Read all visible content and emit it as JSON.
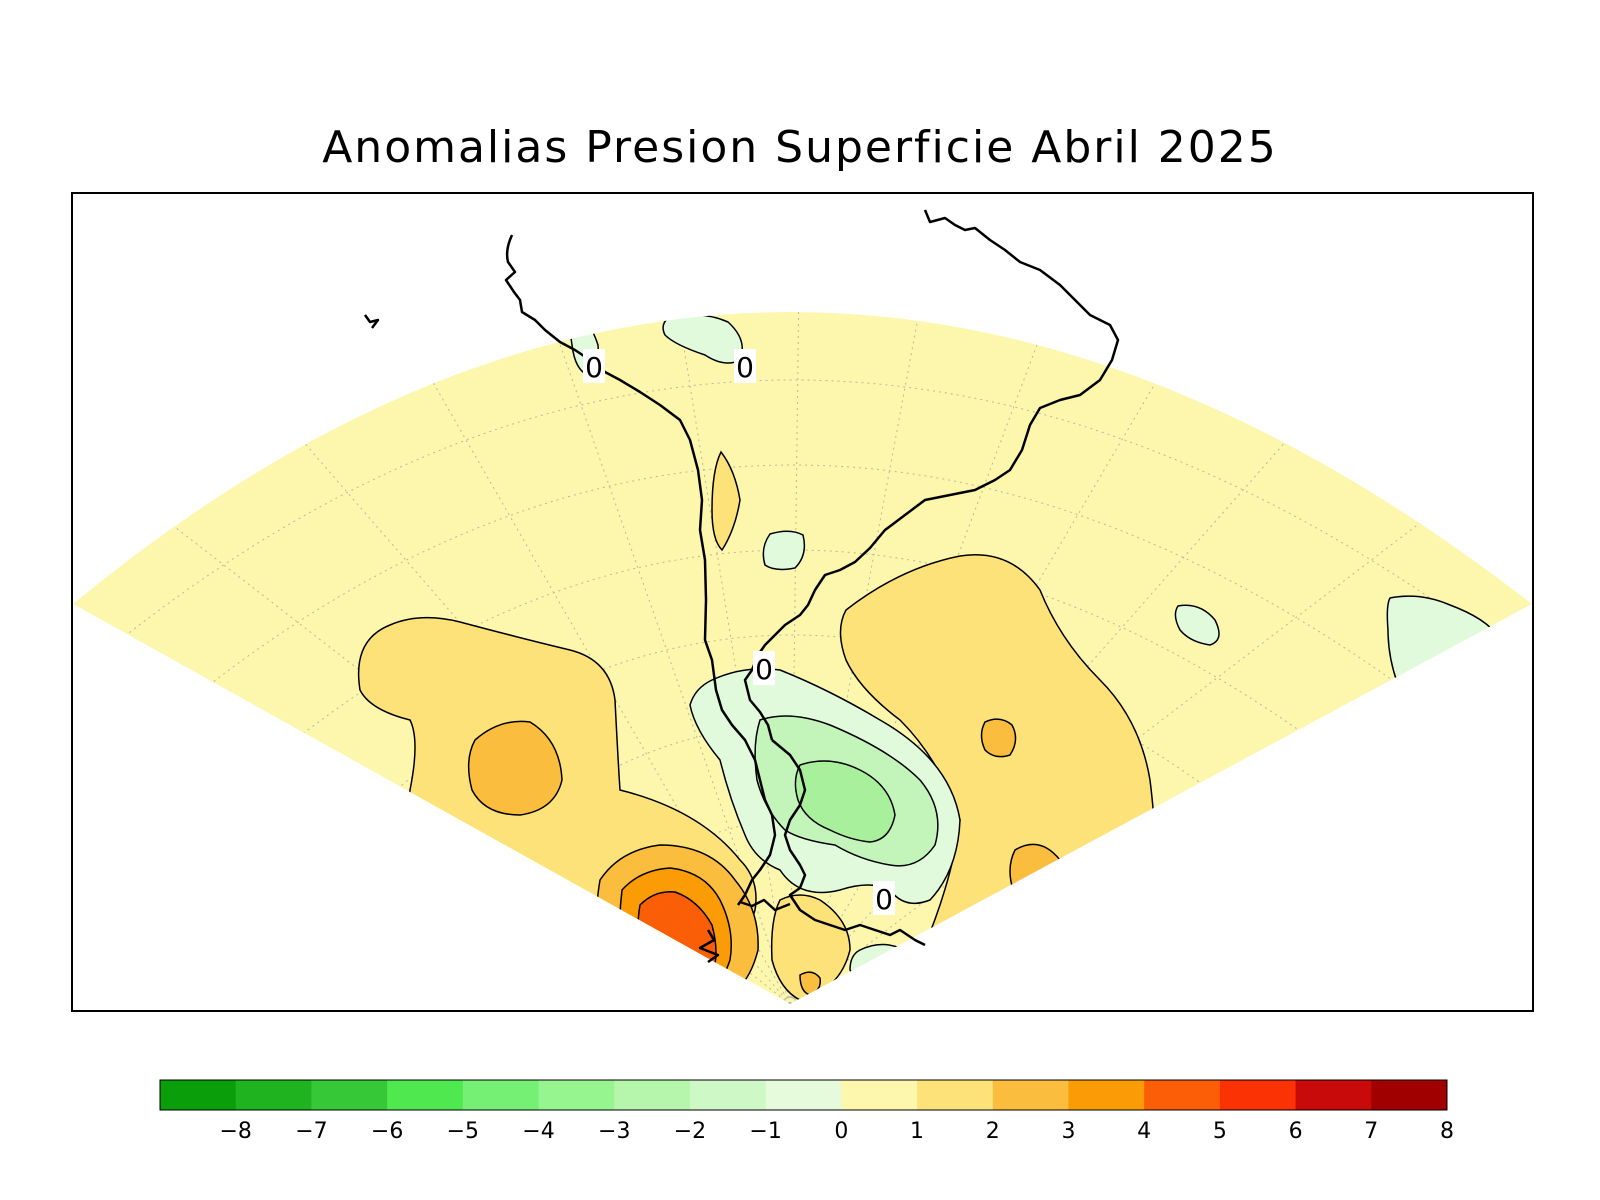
{
  "title": "Anomalias Presion Superficie Abril 2025",
  "contour_labels": [
    {
      "text": "0",
      "region": "Peru coast"
    },
    {
      "text": "0",
      "region": "Western Amazon"
    },
    {
      "text": "0",
      "region": "Rio de la Plata"
    },
    {
      "text": "0",
      "region": "Southwest Atlantic"
    }
  ],
  "colors": {
    "frame": "#000000",
    "background": "#ffffff",
    "neg1": "#e1fadc",
    "neg2": "#c3f5bb",
    "neg3": "#a9f09c",
    "pos0": "#fdf6ad",
    "pos1": "#fde27a",
    "pos2": "#fbbd3e",
    "pos3": "#fb9b06",
    "pos4": "#fa5e06"
  },
  "legend": {
    "bins": [
      {
        "color": "#0a9e0a"
      },
      {
        "color": "#1fb31f"
      },
      {
        "color": "#37c837"
      },
      {
        "color": "#4fe84f"
      },
      {
        "color": "#75f075"
      },
      {
        "color": "#97f58f"
      },
      {
        "color": "#b6f5ac"
      },
      {
        "color": "#cff8c7"
      },
      {
        "color": "#e6fadc"
      },
      {
        "color": "#fdf6ad"
      },
      {
        "color": "#fde27a"
      },
      {
        "color": "#fbbd3e"
      },
      {
        "color": "#fb9b06"
      },
      {
        "color": "#fb5e06"
      },
      {
        "color": "#fa3204"
      },
      {
        "color": "#c80a0a"
      },
      {
        "color": "#a00000"
      }
    ],
    "ticks": [
      "−8",
      "−7",
      "−6",
      "−5",
      "−4",
      "−3",
      "−2",
      "−1",
      "0",
      "1",
      "2",
      "3",
      "4",
      "5",
      "6",
      "7",
      "8"
    ]
  }
}
